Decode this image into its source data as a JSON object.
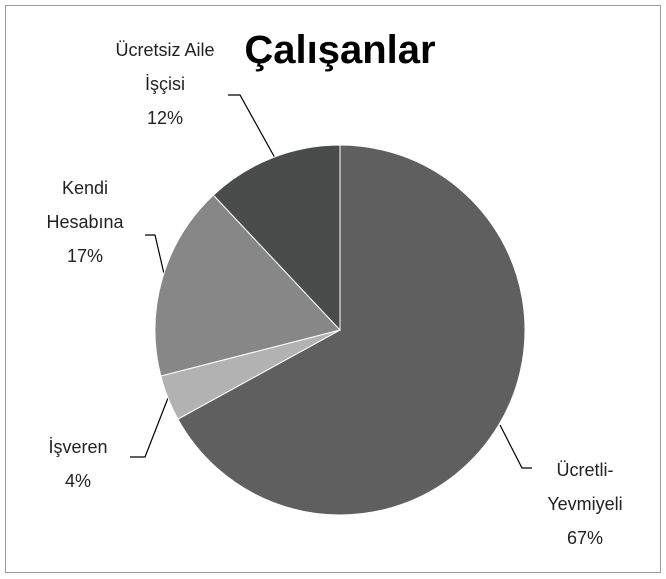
{
  "chart_data": {
    "type": "pie",
    "title": "Çalışanlar",
    "categories": [
      "Ücretli-Yevmiyeli",
      "İşveren",
      "Kendi Hesabına",
      "Ücretsiz Aile İşçisi"
    ],
    "values": [
      67,
      4,
      17,
      12
    ],
    "value_labels": [
      "67%",
      "4%",
      "17%",
      "12%"
    ],
    "colors": [
      "#5f5f5f",
      "#b2b2b2",
      "#878787",
      "#4a4c4c"
    ]
  }
}
